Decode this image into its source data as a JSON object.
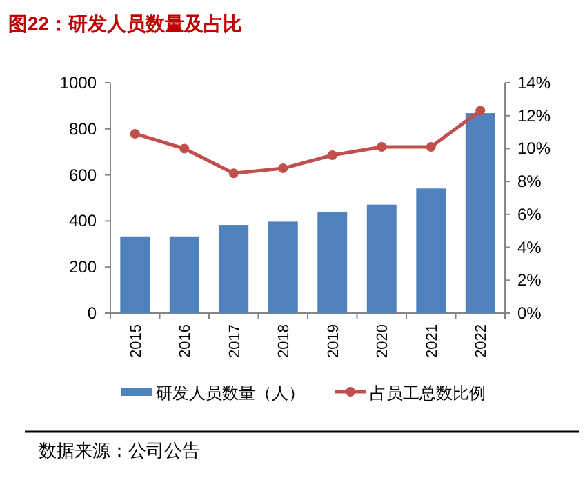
{
  "chart_data": {
    "type": "bar",
    "title": "图22：研发人员数量及占比",
    "categories": [
      "2015",
      "2016",
      "2017",
      "2018",
      "2019",
      "2020",
      "2021",
      "2022"
    ],
    "series": [
      {
        "name": "研发人员数量（人）",
        "color": "#4f81bd",
        "values": [
          333,
          333,
          383,
          397,
          437,
          471,
          541,
          868
        ]
      },
      {
        "name": "占员工总数比例",
        "type": "line",
        "axis": "y2",
        "color": "#c0504d",
        "marker": "circle",
        "values": [
          10.9,
          10.0,
          8.5,
          8.8,
          9.6,
          10.1,
          10.1,
          12.3
        ]
      }
    ],
    "ylim": [
      0,
      1000
    ],
    "yticks": [
      0,
      200,
      400,
      600,
      800,
      1000
    ],
    "y2lim": [
      0,
      14
    ],
    "y2ticks": [
      {
        "value": 0,
        "label": "0%"
      },
      {
        "value": 2,
        "label": "2%"
      },
      {
        "value": 4,
        "label": "4%"
      },
      {
        "value": 6,
        "label": "6%"
      },
      {
        "value": 8,
        "label": "8%"
      },
      {
        "value": 10,
        "label": "10%"
      },
      {
        "value": 12,
        "label": "12%"
      },
      {
        "value": 14,
        "label": "14%"
      }
    ],
    "grid": false,
    "legend": "bottom",
    "annotations": [
      "数据来源：公司公告"
    ]
  }
}
